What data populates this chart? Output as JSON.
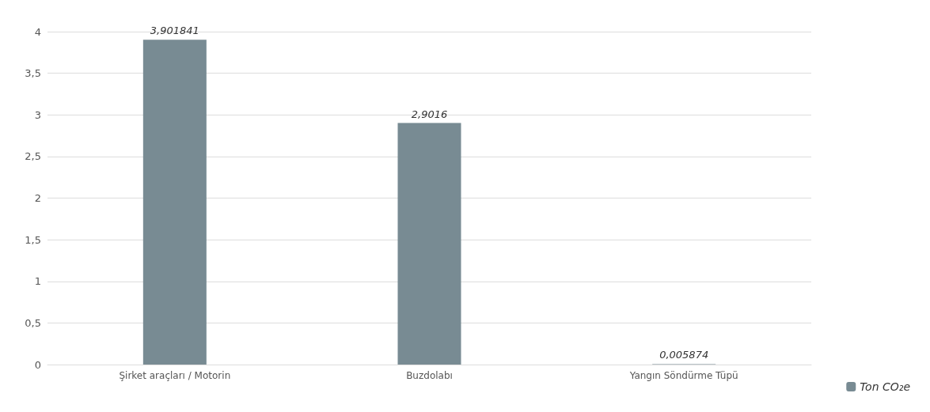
{
  "chart_data": {
    "type": "bar",
    "categories": [
      "Şirket araçları / Motorin",
      "Buzdolabı",
      "Yangın Söndürme Tüpü"
    ],
    "series": [
      {
        "name": "Ton CO₂e",
        "color": "#788b93",
        "values": [
          3.901841,
          2.9016,
          0.005874
        ],
        "value_labels": [
          "3,901841",
          "2,9016",
          "0,005874"
        ]
      }
    ],
    "ylim": [
      0,
      4
    ],
    "yticks": [
      {
        "value": 0,
        "label": "0"
      },
      {
        "value": 0.5,
        "label": "0,5"
      },
      {
        "value": 1,
        "label": "1"
      },
      {
        "value": 1.5,
        "label": "1,5"
      },
      {
        "value": 2,
        "label": "2"
      },
      {
        "value": 2.5,
        "label": "2,5"
      },
      {
        "value": 3,
        "label": "3"
      },
      {
        "value": 3.5,
        "label": "3,5"
      },
      {
        "value": 4,
        "label": "4"
      }
    ],
    "grid": true,
    "legend": "bottom right"
  }
}
